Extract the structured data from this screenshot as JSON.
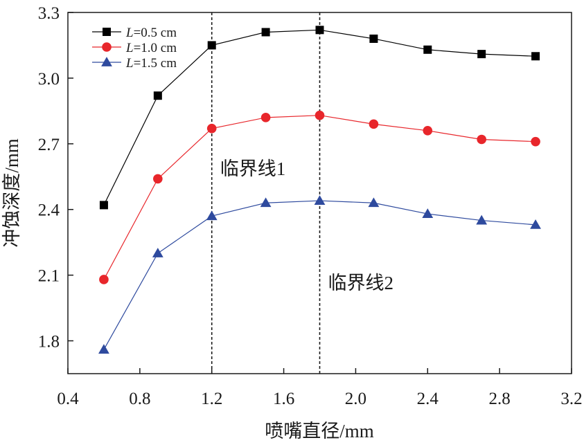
{
  "chart_data": {
    "type": "line",
    "x": [
      0.6,
      0.9,
      1.2,
      1.5,
      1.8,
      2.1,
      2.4,
      2.7,
      3.0
    ],
    "series": [
      {
        "name": "L=0.5 cm",
        "var": "L",
        "rest": "=0.5 cm",
        "color": "#000000",
        "marker": "square",
        "values": [
          2.42,
          2.92,
          3.15,
          3.21,
          3.22,
          3.18,
          3.13,
          3.11,
          3.1
        ]
      },
      {
        "name": "L=1.0 cm",
        "var": "L",
        "rest": "=1.0 cm",
        "color": "#e8262b",
        "marker": "circle",
        "values": [
          2.08,
          2.54,
          2.77,
          2.82,
          2.83,
          2.79,
          2.76,
          2.72,
          2.71
        ]
      },
      {
        "name": "L=1.5 cm",
        "var": "L",
        "rest": "=1.5 cm",
        "color": "#2e4a9e",
        "marker": "triangle",
        "values": [
          1.76,
          2.2,
          2.37,
          2.43,
          2.44,
          2.43,
          2.38,
          2.35,
          2.33
        ]
      }
    ],
    "xlabel": "喷嘴直径/mm",
    "ylabel": "冲蚀深度/mm",
    "xlim": [
      0.4,
      3.2
    ],
    "ylim": [
      1.65,
      3.3
    ],
    "xticks": [
      "0.4",
      "0.8",
      "1.2",
      "1.6",
      "2.0",
      "2.4",
      "2.8",
      "3.2"
    ],
    "yticks": [
      "1.8",
      "2.1",
      "2.4",
      "2.7",
      "3.0",
      "3.3"
    ],
    "critical_lines": [
      {
        "x": 1.2,
        "label": "临界线1"
      },
      {
        "x": 1.8,
        "label": "临界线2"
      }
    ],
    "legend_position": "top-left",
    "grid": false
  }
}
